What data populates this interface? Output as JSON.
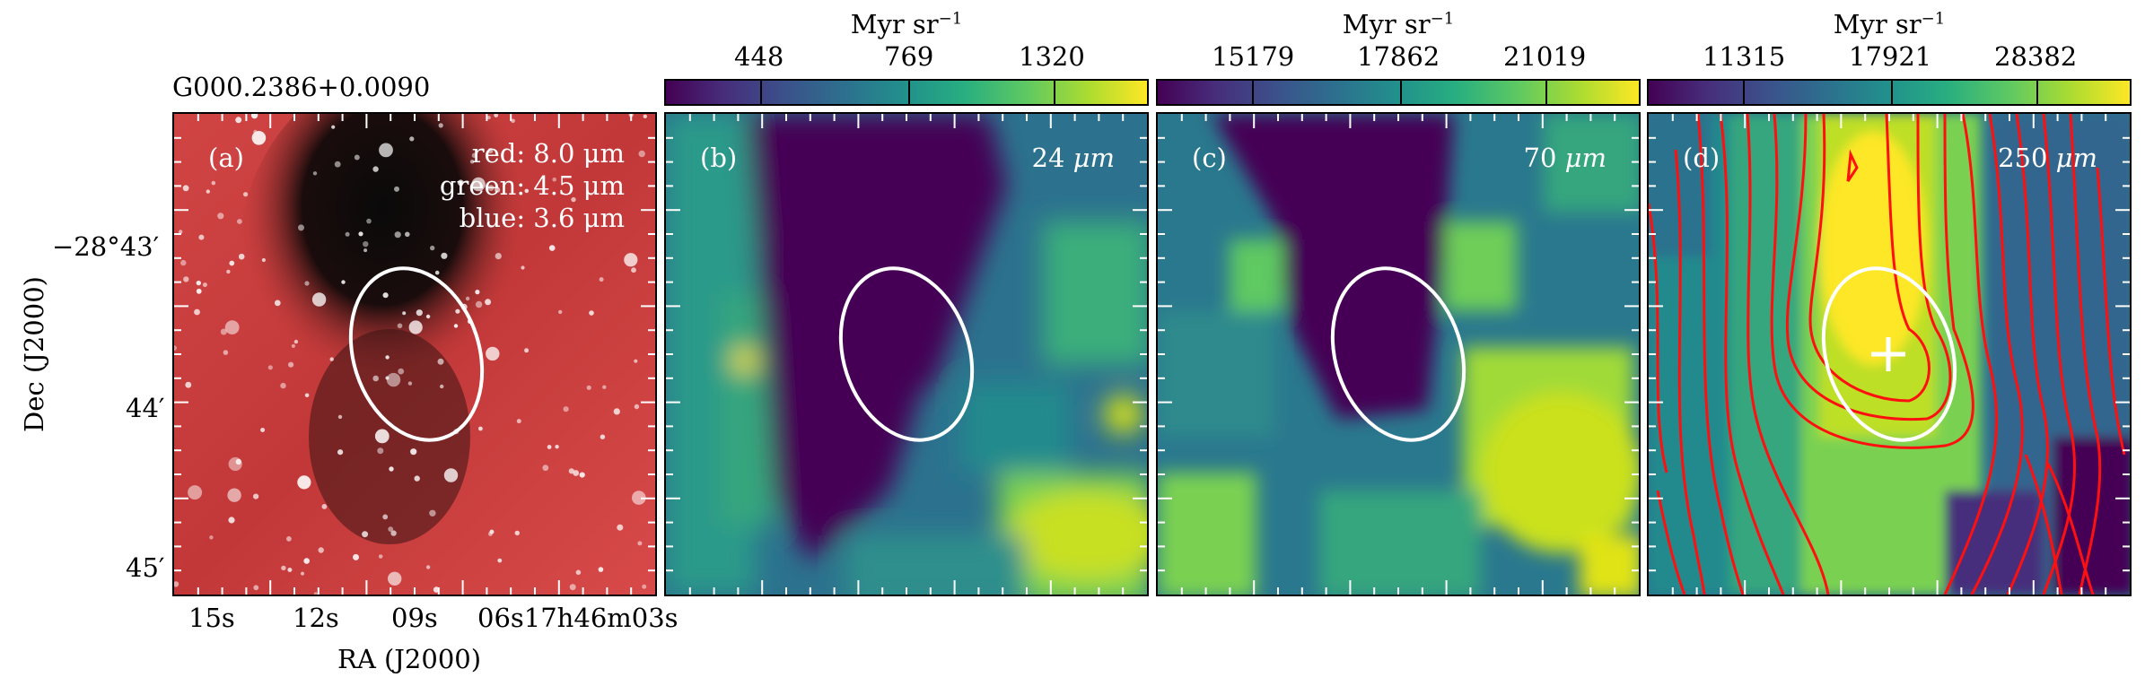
{
  "figure": {
    "source_name": "G000.2386+0.0090",
    "panels": [
      {
        "id": "a",
        "label": "(a)",
        "bands": [
          "red: 8.0 μm",
          "green: 4.5 μm",
          "blue: 3.6 μm"
        ]
      },
      {
        "id": "b",
        "label": "(b)",
        "wavelength": "24",
        "unit": "μm"
      },
      {
        "id": "c",
        "label": "(c)",
        "wavelength": "70",
        "unit": "μm"
      },
      {
        "id": "d",
        "label": "(d)",
        "wavelength": "250",
        "unit": "μm"
      }
    ],
    "colorbars": [
      {
        "title": "Myr sr⁻¹",
        "ticks": [
          "448",
          "769",
          "1320"
        ]
      },
      {
        "title": "Myr sr⁻¹",
        "ticks": [
          "15179",
          "17862",
          "21019"
        ]
      },
      {
        "title": "Myr sr⁻¹",
        "ticks": [
          "11315",
          "17921",
          "28382"
        ]
      }
    ],
    "y_axis": {
      "label": "Dec (J2000)",
      "ticks": [
        "−28°43′",
        "44′",
        "45′"
      ]
    },
    "x_axis": {
      "label": "RA (J2000)",
      "ticks": [
        "15s",
        "12s",
        "09s",
        "06s17h46m03s"
      ]
    },
    "colors": {
      "ellipse": "#ffffff",
      "contour": "#ff1010",
      "frame": "#000000"
    },
    "colormap": "viridis"
  }
}
